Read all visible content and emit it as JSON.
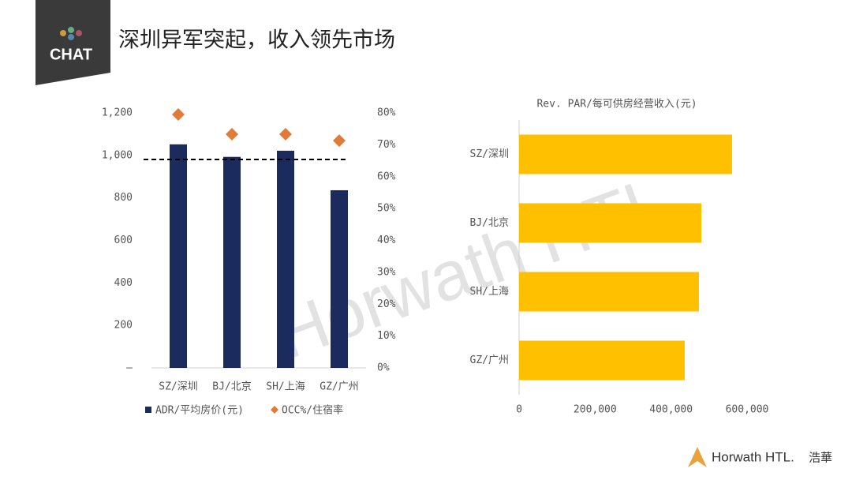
{
  "header": {
    "logo": "CHAT",
    "title": "深圳异军突起，收入领先市场"
  },
  "watermark": "Horwath HTL",
  "footer": {
    "brand": "Horwath HTL.",
    "brand_cn": "浩華"
  },
  "chart_data": [
    {
      "type": "bar",
      "categories": [
        "SZ/深圳",
        "BJ/北京",
        "SH/上海",
        "GZ/广州"
      ],
      "series": [
        {
          "name": "ADR/平均房价(元)",
          "color": "#1c2b5e",
          "values": [
            1052,
            993,
            1022,
            836
          ]
        },
        {
          "name": "OCC%/住宿率",
          "color": "#e07b39",
          "type": "scatter",
          "axis": "y2",
          "values": [
            79.5,
            73.3,
            73.3,
            71.3
          ]
        }
      ],
      "reference_line": 981,
      "ylim": [
        0,
        1200
      ],
      "yticks": [
        {
          "value": 0,
          "label": "–"
        },
        200,
        400,
        600,
        800,
        {
          "value": 1000,
          "label": "1,000"
        },
        {
          "value": 1200,
          "label": "1,200"
        }
      ],
      "y2lim": [
        0,
        80
      ],
      "y2ticks": [
        {
          "value": 0,
          "label": "0%"
        },
        {
          "value": 10,
          "label": "10%"
        },
        {
          "value": 20,
          "label": "20%"
        },
        {
          "value": 30,
          "label": "30%"
        },
        {
          "value": 40,
          "label": "40%"
        },
        {
          "value": 50,
          "label": "50%"
        },
        {
          "value": 60,
          "label": "60%"
        },
        {
          "value": 70,
          "label": "70%"
        },
        {
          "value": 80,
          "label": "80%"
        }
      ],
      "legend": "bottom"
    },
    {
      "type": "barh",
      "title": "Rev. PAR/每可供房经营收入(元)",
      "categories": [
        "SZ/深圳",
        "BJ/北京",
        "SH/上海",
        "GZ/广州"
      ],
      "values": [
        560500,
        479600,
        473300,
        436000
      ],
      "color": "#ffc000",
      "xlim": [
        0,
        600000
      ],
      "xticks": [
        0,
        {
          "value": 200000,
          "label": "200,000"
        },
        {
          "value": 400000,
          "label": "400,000"
        },
        {
          "value": 600000,
          "label": "600,000"
        }
      ]
    }
  ]
}
